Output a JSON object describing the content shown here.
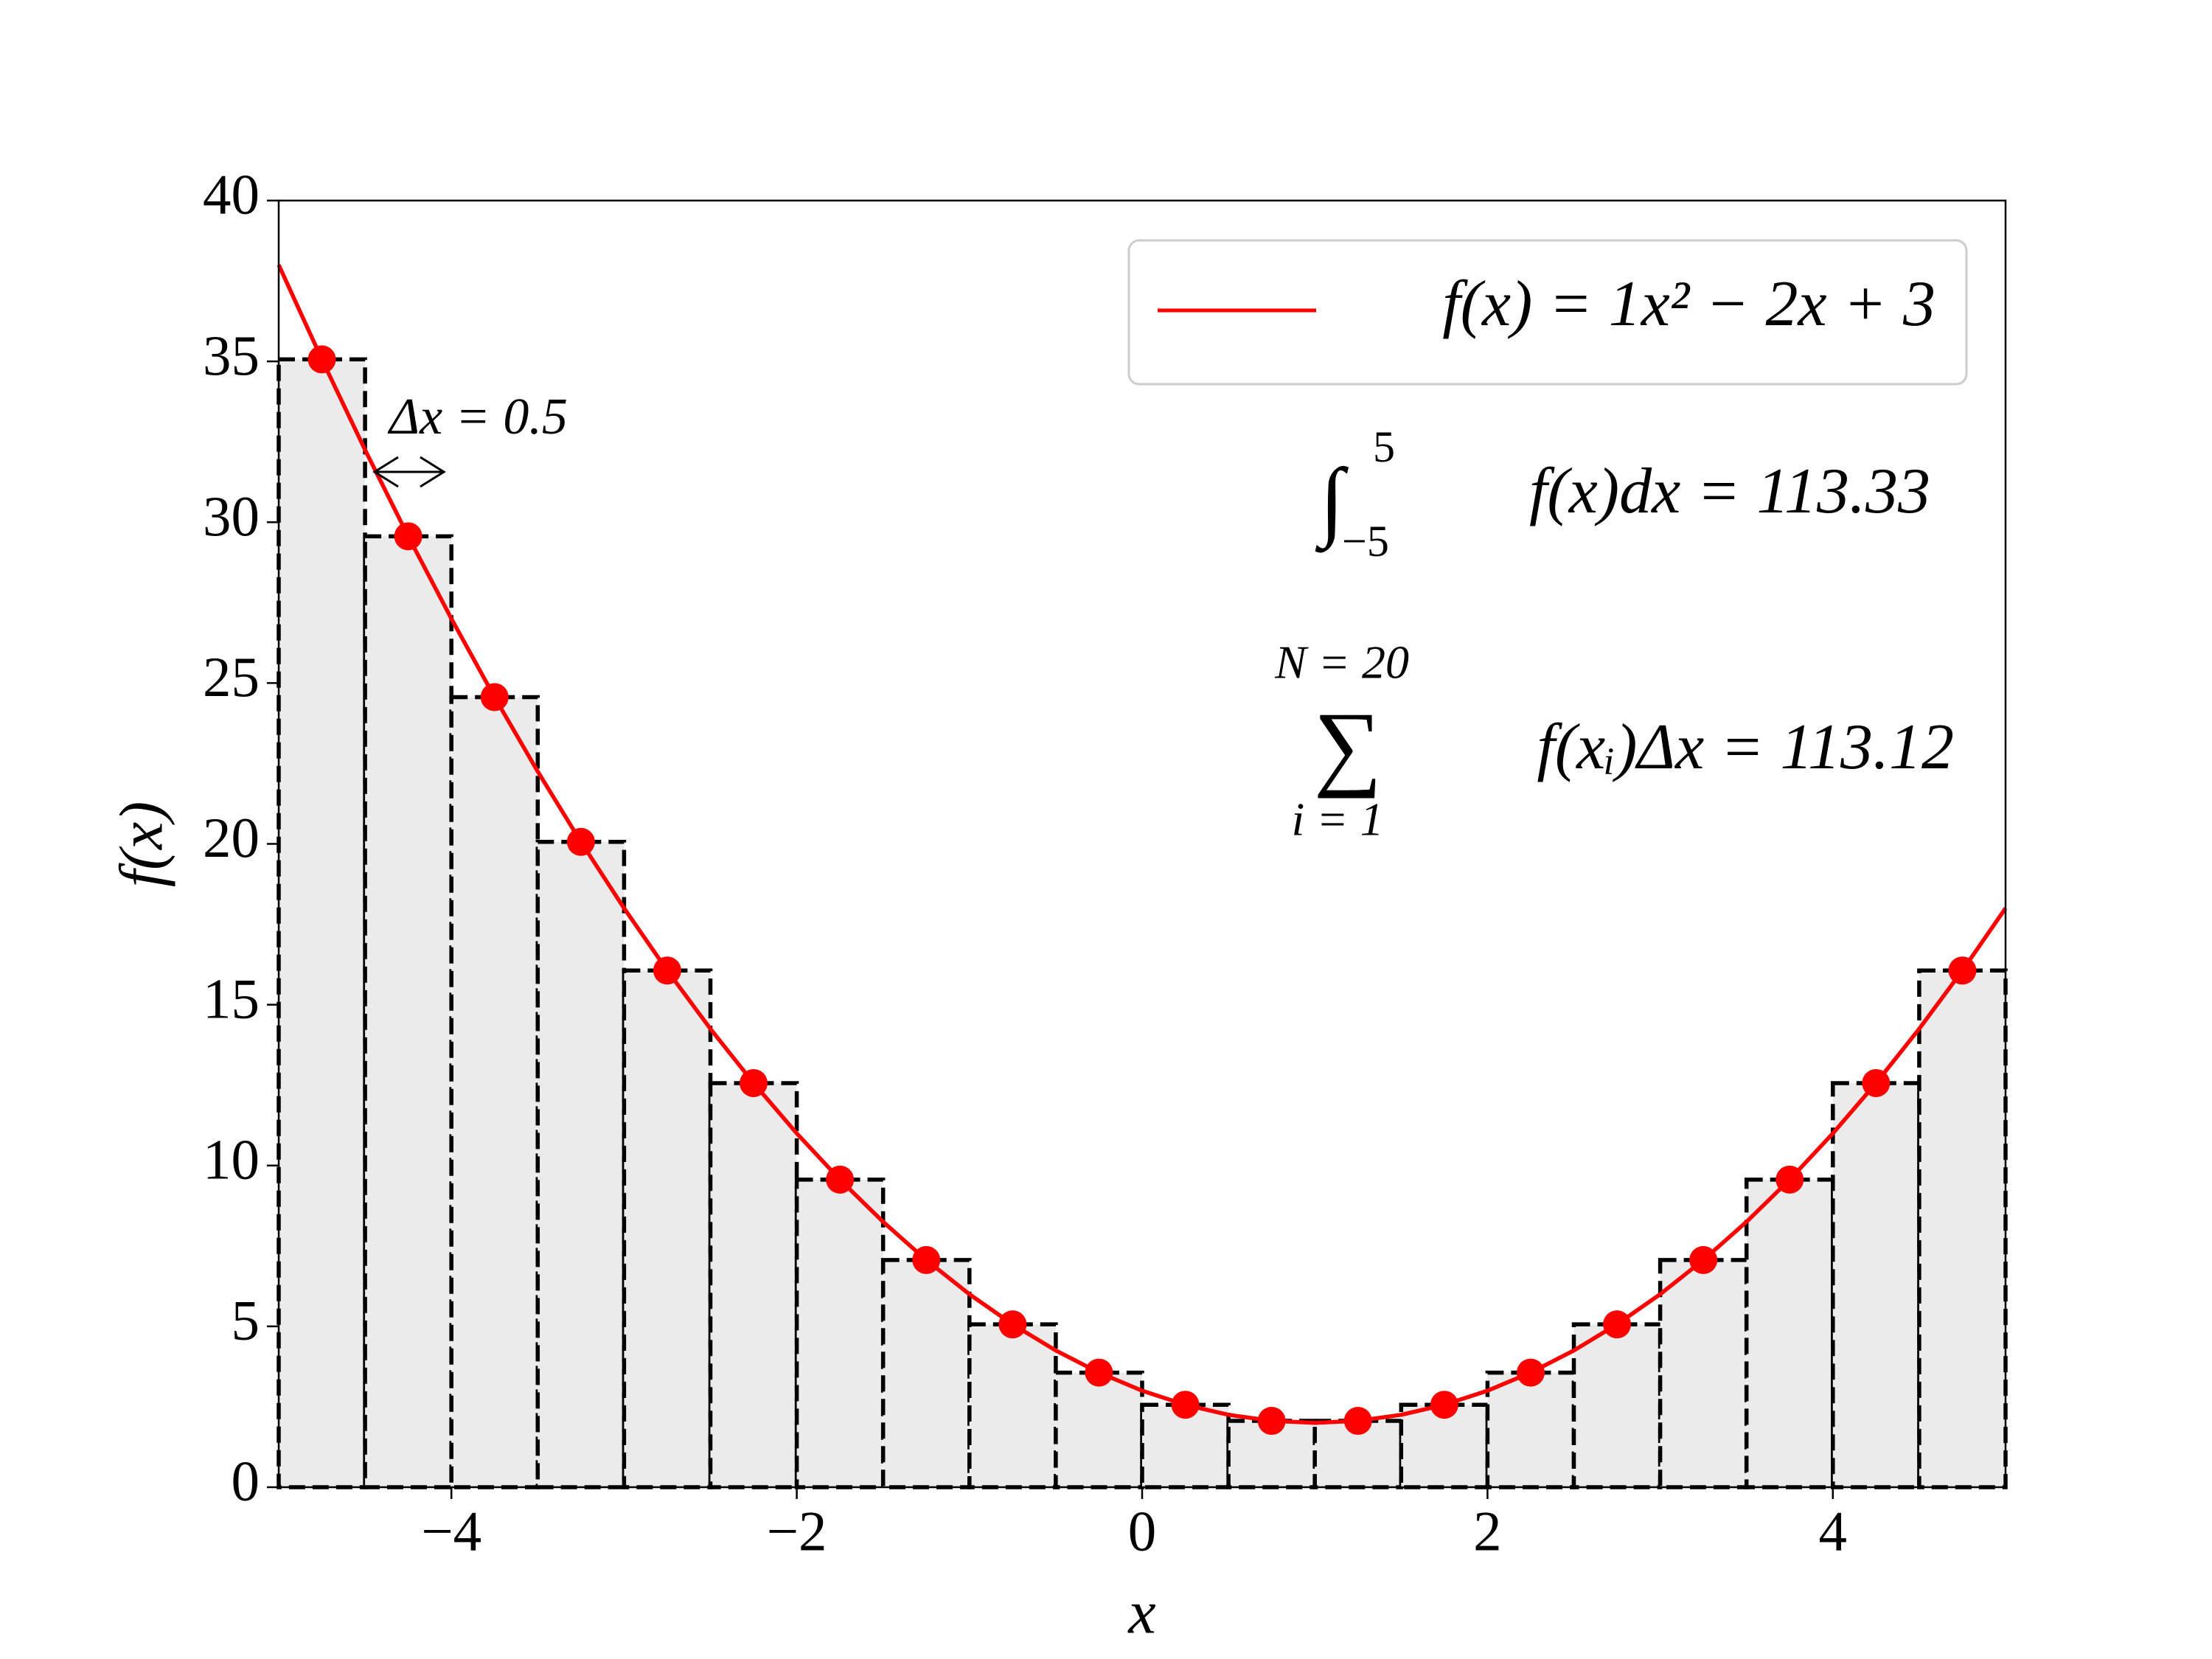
{
  "chart_data": {
    "type": "line",
    "xlabel": "x",
    "ylabel": "f(x)",
    "xlim": [
      -5,
      5
    ],
    "ylim": [
      0,
      40
    ],
    "xticks": [
      {
        "value": -4,
        "label": "−4"
      },
      {
        "value": -2,
        "label": "−2"
      },
      0,
      2,
      4
    ],
    "yticks": [
      0,
      5,
      10,
      15,
      20,
      25,
      30,
      35,
      40
    ],
    "legend": "upper right",
    "series": [
      {
        "name": "f(x) = 1x² − 2x + 3",
        "color": "#ff0000",
        "x": [
          -5,
          -4.75,
          -4.5,
          -4.25,
          -4,
          -3.75,
          -3.5,
          -3.25,
          -3,
          -2.75,
          -2.5,
          -2.25,
          -2,
          -1.75,
          -1.5,
          -1.25,
          -1,
          -0.75,
          -0.5,
          -0.25,
          0,
          0.25,
          0.5,
          0.75,
          1,
          1.25,
          1.5,
          1.75,
          2,
          2.25,
          2.5,
          2.75,
          3,
          3.25,
          3.5,
          3.75,
          4,
          4.25,
          4.5,
          4.75,
          5
        ],
        "values": [
          38,
          35.0625,
          32.25,
          29.5625,
          27,
          24.5625,
          22.25,
          20.0625,
          18,
          16.0625,
          14.25,
          12.5625,
          11,
          9.5625,
          8.25,
          7.0625,
          6,
          5.0625,
          4.25,
          3.5625,
          3,
          2.5625,
          2.25,
          2.0625,
          2,
          2.0625,
          2.25,
          2.5625,
          3,
          3.5625,
          4.25,
          5.0625,
          6,
          7.0625,
          8.25,
          9.5625,
          11,
          12.5625,
          14.25,
          16.0625,
          18
        ]
      }
    ],
    "bars": {
      "color": "#ebebeb",
      "bins": [
        -5,
        -4.5,
        -4,
        -3.5,
        -3,
        -2.5,
        -2,
        -1.5,
        -1,
        -0.5,
        0,
        0.5,
        1,
        1.5,
        2,
        2.5,
        3,
        3.5,
        4,
        4.5,
        5
      ],
      "midpoints": [
        -4.75,
        -4.25,
        -3.75,
        -3.25,
        -2.75,
        -2.25,
        -1.75,
        -1.25,
        -0.75,
        -0.25,
        0.25,
        0.75,
        1.25,
        1.75,
        2.25,
        2.75,
        3.25,
        3.75,
        4.25,
        4.75
      ],
      "values": [
        35.0625,
        29.5625,
        24.5625,
        20.0625,
        16.0625,
        12.5625,
        9.5625,
        7.0625,
        5.0625,
        3.5625,
        2.5625,
        2.0625,
        2.0625,
        2.5625,
        3.5625,
        5.0625,
        7.0625,
        9.5625,
        12.5625,
        16.0625
      ]
    },
    "annotations": {
      "delta": "Δx = 0.5",
      "integral": {
        "symbol": "∫",
        "upper": "5",
        "lower": "−5",
        "text": "f(x)dx = 113.33"
      },
      "sum": {
        "symbol": "∑",
        "upper": "N = 20",
        "lower": "i = 1",
        "text": "f(xᵢ)Δx = 113.12"
      }
    }
  }
}
